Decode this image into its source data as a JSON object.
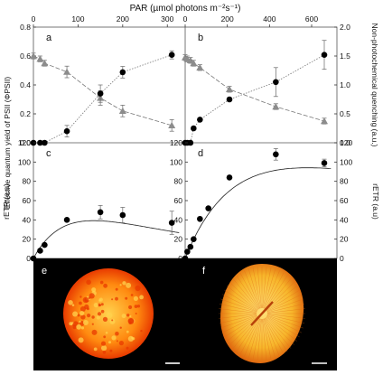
{
  "figure": {
    "top_axis_label": "PAR (µmol photons m⁻²s⁻¹)",
    "left_axis_label_top": "Effective quantum yield of PSII (ΦPSII)",
    "right_axis_label_top": "Non-photochemical quenching (a.u.)",
    "left_axis_label_bottom": "rETR (a.u)",
    "right_axis_label_bottom": "rETR (a.u)",
    "panel_letters": [
      "a",
      "b",
      "c",
      "d",
      "e",
      "f"
    ],
    "marker_colors": {
      "circle": "#000000",
      "triangle": "#8c8c8c"
    },
    "photo_e_colors": [
      "#ffd24d",
      "#ff8a10",
      "#e83a00"
    ],
    "photo_f_colors": [
      "#ffe27a",
      "#f7b52a",
      "#e06a10"
    ]
  },
  "chart_data": [
    {
      "panel": "a",
      "type": "scatter",
      "x_top_ticks": [
        "0",
        "100",
        "200",
        "300"
      ],
      "xlim": [
        0,
        340
      ],
      "ylim": [
        0,
        0.8
      ],
      "y_ticks": [
        "0.0",
        "0.2",
        "0.4",
        "0.6",
        "0.8"
      ],
      "y2lim": [
        0,
        2.0
      ],
      "series": [
        {
          "marker": "triangle",
          "axis": "left",
          "x": [
            0,
            15,
            25,
            75,
            150,
            200,
            310
          ],
          "y": [
            0.6,
            0.58,
            0.55,
            0.49,
            0.31,
            0.22,
            0.12
          ],
          "err": [
            0.02,
            0.02,
            0.02,
            0.04,
            0.05,
            0.04,
            0.04
          ]
        },
        {
          "marker": "circle",
          "axis": "right",
          "x": [
            0,
            15,
            25,
            75,
            150,
            200,
            310
          ],
          "y": [
            0,
            0,
            0,
            0.2,
            0.85,
            1.22,
            1.52
          ],
          "err": [
            0,
            0,
            0,
            0.1,
            0.15,
            0.1,
            0.07
          ]
        }
      ]
    },
    {
      "panel": "b",
      "type": "scatter",
      "x_top_ticks": [
        "0",
        "200",
        "400",
        "600"
      ],
      "xlim": [
        0,
        720
      ],
      "ylim": [
        0,
        0.8
      ],
      "y2lim": [
        0,
        2.0
      ],
      "y2_ticks": [
        "0.0",
        "0.5",
        "1.0",
        "1.5",
        "2.0"
      ],
      "series": [
        {
          "marker": "triangle",
          "axis": "left",
          "x": [
            0,
            10,
            25,
            40,
            70,
            210,
            430,
            660
          ],
          "y": [
            0.59,
            0.58,
            0.57,
            0.55,
            0.52,
            0.37,
            0.25,
            0.15
          ],
          "err": [
            0.02,
            0.02,
            0.02,
            0.02,
            0.02,
            0.02,
            0.02,
            0.02
          ]
        },
        {
          "marker": "circle",
          "axis": "right",
          "x": [
            0,
            10,
            25,
            40,
            70,
            210,
            430,
            660
          ],
          "y": [
            0,
            0,
            0,
            0.25,
            0.4,
            0.75,
            1.05,
            1.52
          ],
          "err": [
            0,
            0,
            0,
            0,
            0,
            0,
            0.25,
            0.25
          ]
        }
      ]
    },
    {
      "panel": "c",
      "type": "scatter",
      "xlim": [
        0,
        340
      ],
      "ylim": [
        0,
        120
      ],
      "y_ticks": [
        "0",
        "20",
        "40",
        "60",
        "80",
        "100",
        "120"
      ],
      "series": [
        {
          "marker": "circle",
          "x": [
            0,
            15,
            25,
            75,
            150,
            200,
            310
          ],
          "y": [
            0,
            8,
            14,
            40,
            48,
            45,
            37
          ],
          "err": [
            0,
            0,
            0,
            0,
            7,
            8,
            12
          ],
          "fit": true
        }
      ]
    },
    {
      "panel": "d",
      "type": "scatter",
      "xlim": [
        0,
        720
      ],
      "ylim": [
        0,
        120
      ],
      "y_ticks": [
        "0",
        "20",
        "40",
        "60",
        "80",
        "100",
        "120"
      ],
      "series": [
        {
          "marker": "circle",
          "x": [
            0,
            10,
            25,
            40,
            70,
            110,
            210,
            430,
            660
          ],
          "y": [
            0,
            7,
            12,
            20,
            41,
            52,
            84,
            108,
            99
          ],
          "err": [
            0,
            0,
            0,
            0,
            0,
            0,
            0,
            6,
            4
          ],
          "fit": true
        }
      ]
    }
  ]
}
